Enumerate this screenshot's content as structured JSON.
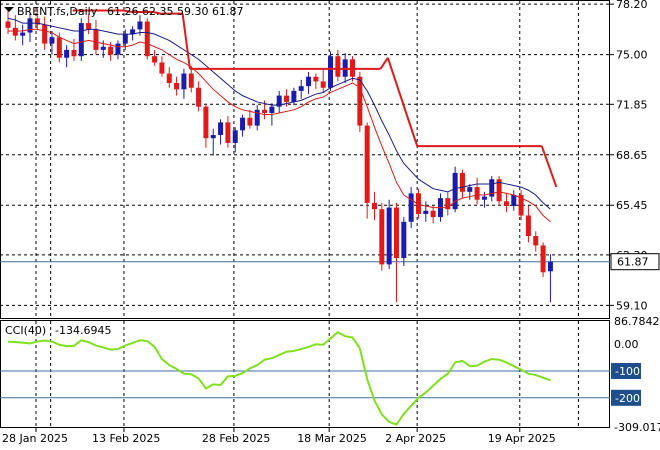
{
  "header": {
    "symbol": "BRENT.fs,Daily",
    "ohlc": "61.26 62.35 59.30 61.87"
  },
  "indicator_header": {
    "label": "CCI(40)",
    "value": "-134.6945"
  },
  "price_axis": {
    "ticks": [
      "78.20",
      "75.00",
      "71.85",
      "68.65",
      "65.45",
      "62.30",
      "59.10"
    ],
    "current_price": "61.87"
  },
  "cci_axis": {
    "ticks": [
      "86.7842",
      "0.00",
      "-100",
      "-200",
      "-309.017"
    ]
  },
  "time_axis": {
    "labels": [
      "28 Jan 2025",
      "13 Feb 2025",
      "28 Feb 2025",
      "18 Mar 2025",
      "2 Apr 2025",
      "19 Apr 2025"
    ]
  },
  "colors": {
    "bull": "#1b1bb0",
    "bear": "#e01a1a",
    "ma_fast": "#e01a1a",
    "ma_slow": "#1a1a8c",
    "stop": "#e01a1a",
    "cci": "#80e020",
    "level_line": "#3d6fa0"
  },
  "chart_data": [
    {
      "type": "candlestick",
      "title": "BRENT.fs,Daily",
      "ylim": [
        58.3,
        78.4
      ],
      "x_labels": [
        "28 Jan 2025",
        "13 Feb 2025",
        "28 Feb 2025",
        "18 Mar 2025",
        "2 Apr 2025",
        "19 Apr 2025"
      ],
      "ohlc": [
        [
          77.1,
          77.9,
          76.3,
          76.7
        ],
        [
          76.7,
          77.5,
          75.9,
          76.2
        ],
        [
          76.2,
          76.9,
          75.6,
          76.4
        ],
        [
          76.4,
          77.6,
          75.8,
          77.3
        ],
        [
          77.3,
          78.0,
          76.6,
          76.9
        ],
        [
          76.9,
          77.4,
          75.3,
          75.7
        ],
        [
          75.7,
          76.5,
          75.0,
          76.1
        ],
        [
          76.1,
          76.4,
          74.5,
          74.8
        ],
        [
          74.8,
          75.6,
          74.2,
          75.3
        ],
        [
          75.3,
          76.0,
          74.6,
          74.9
        ],
        [
          74.9,
          77.3,
          74.6,
          77.0
        ],
        [
          77.0,
          77.6,
          76.3,
          76.6
        ],
        [
          76.6,
          77.2,
          75.0,
          75.3
        ],
        [
          75.3,
          75.9,
          74.8,
          75.5
        ],
        [
          75.5,
          75.8,
          74.6,
          75.0
        ],
        [
          75.0,
          75.9,
          74.7,
          75.7
        ],
        [
          75.7,
          76.6,
          75.3,
          76.3
        ],
        [
          76.3,
          76.8,
          75.9,
          76.6
        ],
        [
          76.6,
          77.5,
          76.2,
          77.1
        ],
        [
          77.1,
          77.3,
          74.7,
          74.9
        ],
        [
          74.9,
          75.3,
          74.3,
          74.5
        ],
        [
          74.5,
          74.9,
          73.6,
          73.8
        ],
        [
          73.8,
          74.2,
          72.9,
          73.2
        ],
        [
          73.2,
          73.6,
          72.4,
          72.8
        ],
        [
          72.8,
          74.1,
          72.2,
          73.8
        ],
        [
          73.8,
          74.3,
          72.6,
          72.9
        ],
        [
          72.9,
          73.3,
          71.4,
          71.7
        ],
        [
          71.7,
          71.9,
          69.1,
          69.7
        ],
        [
          69.7,
          70.3,
          68.6,
          69.9
        ],
        [
          69.9,
          70.9,
          69.3,
          70.7
        ],
        [
          70.7,
          71.1,
          69.1,
          69.4
        ],
        [
          69.4,
          70.4,
          68.8,
          70.2
        ],
        [
          70.2,
          71.2,
          69.8,
          71.0
        ],
        [
          71.0,
          71.5,
          70.3,
          70.5
        ],
        [
          70.5,
          71.8,
          70.2,
          71.5
        ],
        [
          71.5,
          72.1,
          70.9,
          71.3
        ],
        [
          71.3,
          71.9,
          70.5,
          71.7
        ],
        [
          71.7,
          72.7,
          71.3,
          72.4
        ],
        [
          72.4,
          72.8,
          71.7,
          72.0
        ],
        [
          72.0,
          72.9,
          71.8,
          72.7
        ],
        [
          72.7,
          73.4,
          72.2,
          73.0
        ],
        [
          73.0,
          73.9,
          72.5,
          73.6
        ],
        [
          73.6,
          73.8,
          72.8,
          73.3
        ],
        [
          73.3,
          74.1,
          72.6,
          72.9
        ],
        [
          72.9,
          75.2,
          72.7,
          74.9
        ],
        [
          74.9,
          75.3,
          73.3,
          73.6
        ],
        [
          73.6,
          75.1,
          73.2,
          74.7
        ],
        [
          74.7,
          74.9,
          73.3,
          73.6
        ],
        [
          73.6,
          73.9,
          70.1,
          70.5
        ],
        [
          70.5,
          70.7,
          64.6,
          65.6
        ],
        [
          65.6,
          66.3,
          64.5,
          65.2
        ],
        [
          65.2,
          65.6,
          61.3,
          61.7
        ],
        [
          61.7,
          65.8,
          61.4,
          65.3
        ],
        [
          65.3,
          65.6,
          59.3,
          62.1
        ],
        [
          62.1,
          64.7,
          61.6,
          64.4
        ],
        [
          64.4,
          66.6,
          64.0,
          66.2
        ],
        [
          66.2,
          66.5,
          64.6,
          64.9
        ],
        [
          64.9,
          65.7,
          64.4,
          65.1
        ],
        [
          65.1,
          65.4,
          64.3,
          64.7
        ],
        [
          64.7,
          66.2,
          64.4,
          65.9
        ],
        [
          65.9,
          66.3,
          64.8,
          65.2
        ],
        [
          65.2,
          67.9,
          65.0,
          67.5
        ],
        [
          67.5,
          67.7,
          65.9,
          66.3
        ],
        [
          66.3,
          66.8,
          65.8,
          66.6
        ],
        [
          66.6,
          67.2,
          65.5,
          65.8
        ],
        [
          65.8,
          66.3,
          65.3,
          66.0
        ],
        [
          66.0,
          67.3,
          65.7,
          67.1
        ],
        [
          67.1,
          67.3,
          65.4,
          65.7
        ],
        [
          65.7,
          66.2,
          65.0,
          65.4
        ],
        [
          65.4,
          66.4,
          65.1,
          66.1
        ],
        [
          66.1,
          66.4,
          64.5,
          64.8
        ],
        [
          64.8,
          65.4,
          63.1,
          63.5
        ],
        [
          63.5,
          63.8,
          62.5,
          62.9
        ],
        [
          62.9,
          63.1,
          60.9,
          61.2
        ],
        [
          61.26,
          62.35,
          59.3,
          61.87
        ]
      ],
      "ma_fast": [
        76.5,
        76.5,
        76.5,
        76.6,
        76.6,
        76.5,
        76.4,
        76.1,
        75.9,
        75.7,
        75.8,
        75.9,
        75.8,
        75.7,
        75.6,
        75.5,
        75.5,
        75.6,
        75.8,
        75.7,
        75.5,
        75.3,
        75.0,
        74.7,
        74.5,
        74.2,
        73.8,
        73.3,
        72.8,
        72.4,
        72.0,
        71.7,
        71.5,
        71.4,
        71.3,
        71.2,
        71.2,
        71.3,
        71.4,
        71.5,
        71.7,
        72.0,
        72.2,
        72.3,
        72.6,
        72.8,
        73.0,
        73.2,
        72.9,
        71.7,
        70.4,
        69.2,
        68.1,
        66.9,
        66.1,
        65.8,
        65.5,
        65.4,
        65.3,
        65.3,
        65.3,
        65.7,
        65.9,
        66.0,
        66.1,
        66.1,
        66.2,
        66.3,
        66.2,
        66.1,
        65.9,
        65.7,
        65.4,
        64.8,
        64.4
      ],
      "ma_slow": [
        77.3,
        77.2,
        77.0,
        77.0,
        77.0,
        76.9,
        76.8,
        76.7,
        76.6,
        76.5,
        76.5,
        76.6,
        76.6,
        76.5,
        76.4,
        76.3,
        76.3,
        76.3,
        76.4,
        76.4,
        76.3,
        76.1,
        75.9,
        75.6,
        75.3,
        75.0,
        74.7,
        74.3,
        73.9,
        73.5,
        73.1,
        72.7,
        72.4,
        72.2,
        72.0,
        71.9,
        71.8,
        71.8,
        71.9,
        72.0,
        72.1,
        72.3,
        72.5,
        72.6,
        72.9,
        73.1,
        73.3,
        73.5,
        73.4,
        72.7,
        71.8,
        70.8,
        69.9,
        68.9,
        68.1,
        67.6,
        67.1,
        66.8,
        66.5,
        66.4,
        66.3,
        66.5,
        66.6,
        66.7,
        66.8,
        66.8,
        66.8,
        66.9,
        66.8,
        66.7,
        66.6,
        66.4,
        66.1,
        65.6,
        65.2
      ],
      "stop_line": [
        [
          5,
          77.8
        ],
        [
          12,
          77.8
        ],
        [
          13,
          77.7
        ],
        [
          16,
          77.7
        ],
        [
          17,
          77.6
        ],
        [
          20,
          77.6
        ],
        [
          21,
          74.1
        ],
        [
          47,
          74.1
        ],
        [
          48,
          74.8
        ],
        [
          52,
          69.2
        ],
        [
          69,
          69.2
        ],
        [
          71,
          66.6
        ]
      ]
    },
    {
      "type": "line",
      "title": "CCI(40)",
      "ylim": [
        -309.017,
        86.7842
      ],
      "levels": [
        -100,
        -200
      ],
      "values": [
        10,
        8,
        6,
        3,
        10,
        14,
        10,
        -2,
        -7,
        -6,
        15,
        8,
        -5,
        -12,
        -20,
        -18,
        -5,
        5,
        15,
        12,
        -10,
        -55,
        -78,
        -92,
        -110,
        -112,
        -128,
        -165,
        -150,
        -152,
        -120,
        -118,
        -108,
        -90,
        -78,
        -58,
        -52,
        -40,
        -28,
        -25,
        -18,
        -10,
        0,
        -2,
        22,
        45,
        30,
        25,
        -15,
        -130,
        -210,
        -262,
        -290,
        -300,
        -260,
        -230,
        -200,
        -180,
        -155,
        -130,
        -110,
        -68,
        -62,
        -82,
        -80,
        -65,
        -55,
        -58,
        -68,
        -82,
        -95,
        -110,
        -115,
        -125,
        -134.6945
      ]
    }
  ]
}
